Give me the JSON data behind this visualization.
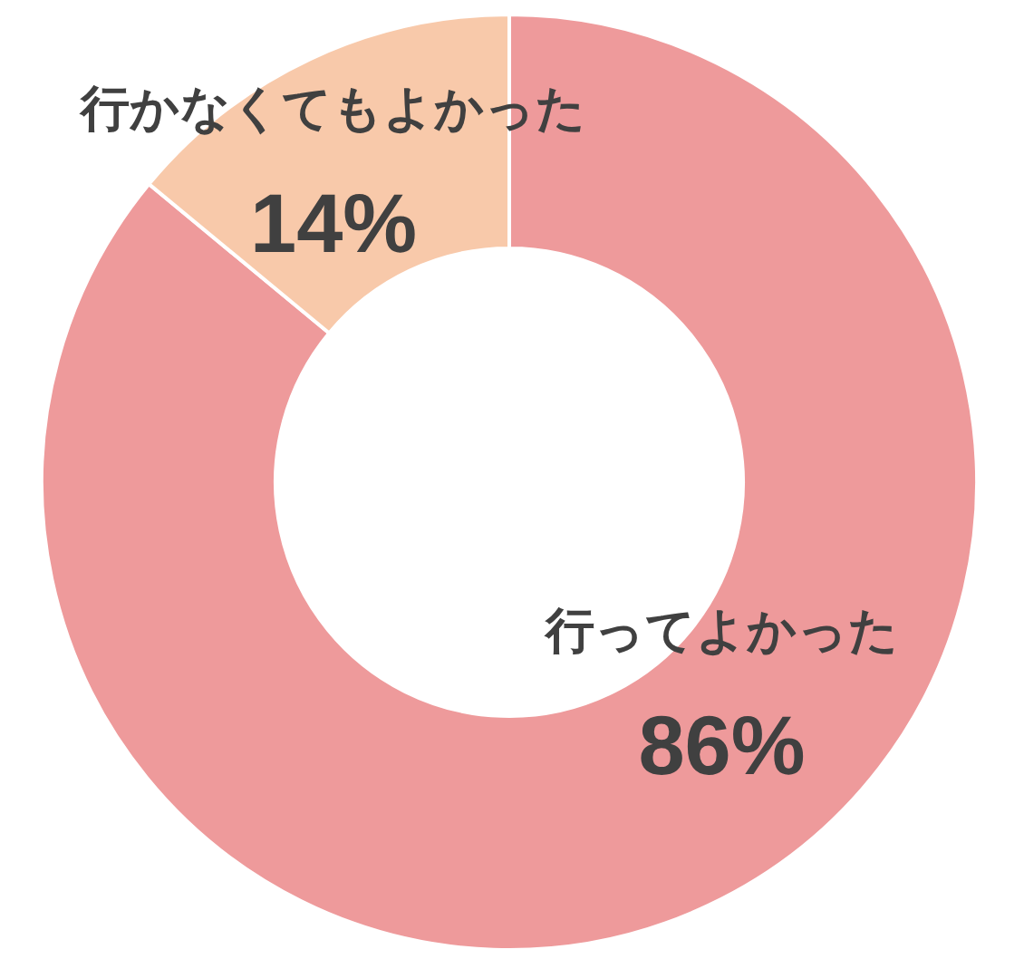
{
  "chart_data": {
    "type": "donut",
    "categories": [
      "行ってよかった",
      "行かなくてもよかった"
    ],
    "values": [
      86,
      14
    ],
    "colors": [
      "#ee9a9b",
      "#f8c9aa"
    ],
    "value_labels": [
      "86%",
      "14%"
    ]
  }
}
